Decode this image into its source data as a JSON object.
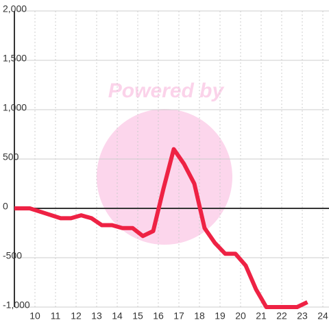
{
  "chart_data": {
    "type": "line",
    "watermark": "Powered by",
    "x": [
      9,
      9.75,
      10.5,
      11.25,
      11.75,
      12.25,
      12.75,
      13.25,
      13.75,
      14.25,
      14.75,
      15.25,
      15.75,
      16.25,
      16.75,
      17.25,
      17.75,
      18.25,
      18.75,
      19.25,
      19.75,
      20.25,
      20.75,
      21.25,
      21.75,
      22.25,
      22.75,
      23.25
    ],
    "series": [
      {
        "color": "#ee2244",
        "values": [
          0,
          0,
          -50,
          -100,
          -100,
          -70,
          -100,
          -170,
          -170,
          -200,
          -200,
          -280,
          -230,
          200,
          600,
          450,
          250,
          -200,
          -350,
          -460,
          -460,
          -580,
          -820,
          -1000,
          -1000,
          -1000,
          -1000,
          -950
        ]
      }
    ],
    "xlim": [
      9,
      24.3
    ],
    "xticks": [
      10,
      11,
      12,
      13,
      14,
      15,
      16,
      17,
      18,
      19,
      20,
      21,
      22,
      23,
      24
    ],
    "ylim": [
      -1000,
      2000
    ],
    "yticks": [
      {
        "value": -1000,
        "label": "-1,000"
      },
      -500,
      0,
      500,
      {
        "value": 1000,
        "label": "1,000"
      },
      {
        "value": 1500,
        "label": "1,500"
      },
      {
        "value": 2000,
        "label": "2,000"
      }
    ],
    "grid": true
  }
}
